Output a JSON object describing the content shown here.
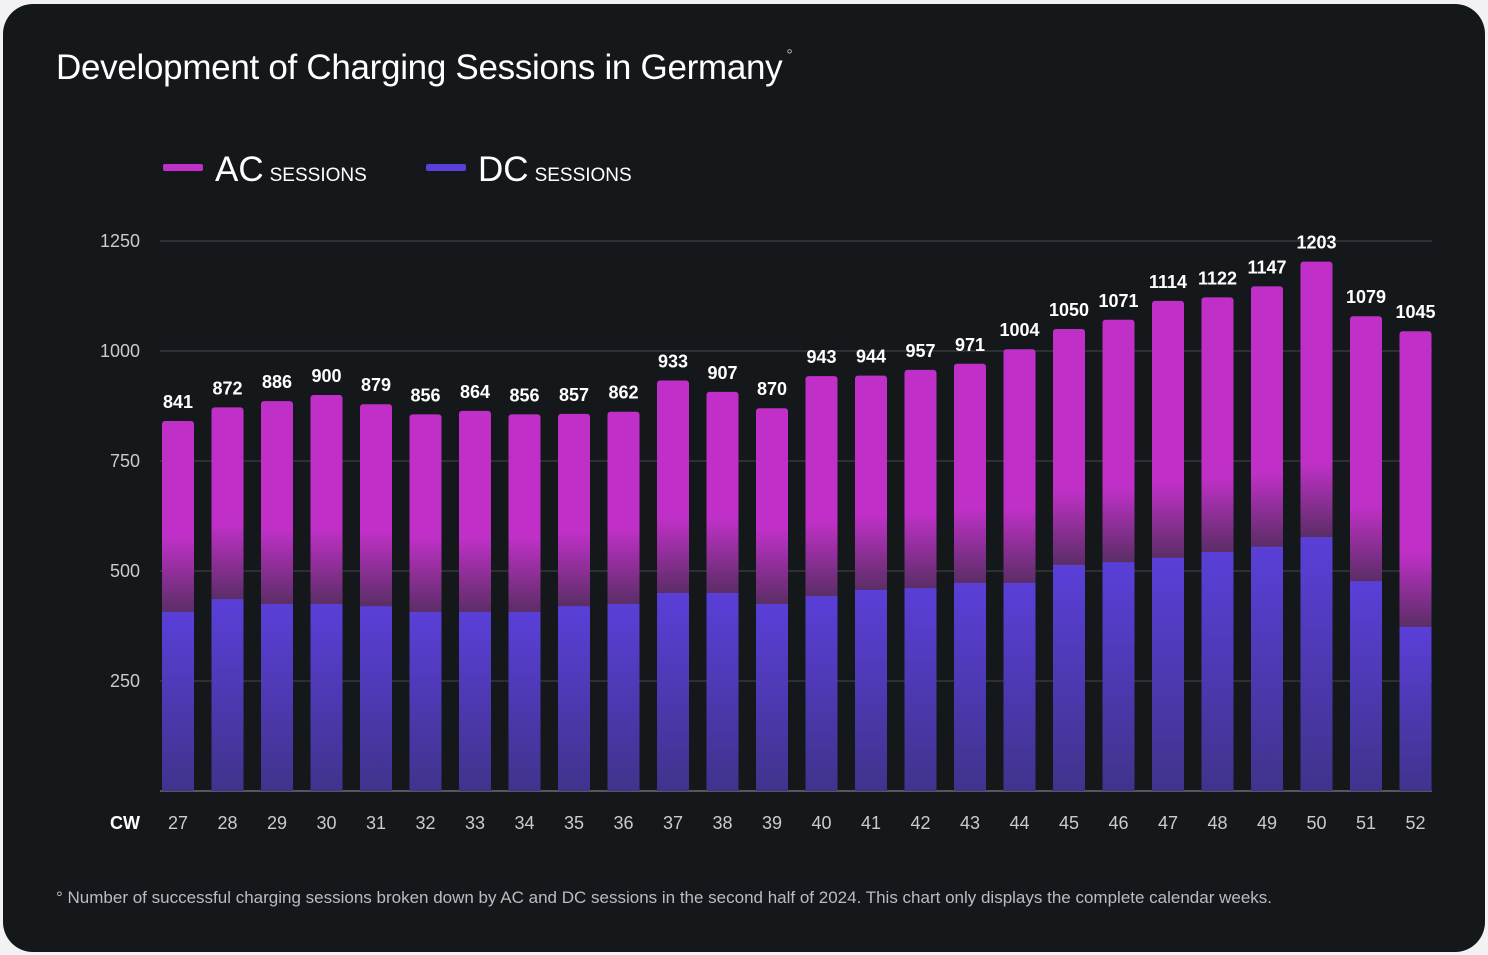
{
  "chart_data": {
    "type": "bar",
    "stacked": true,
    "title": "Development of Charging Sessions in Germany",
    "title_mark": "°",
    "xlabel": "CW",
    "ylabel": "",
    "ylim": [
      0,
      1250
    ],
    "yticks": [
      250,
      500,
      750,
      1000,
      1250
    ],
    "grid": true,
    "legend_position": "top-left",
    "categories": [
      "27",
      "28",
      "29",
      "30",
      "31",
      "32",
      "33",
      "34",
      "35",
      "36",
      "37",
      "38",
      "39",
      "40",
      "41",
      "42",
      "43",
      "44",
      "45",
      "46",
      "47",
      "48",
      "49",
      "50",
      "51",
      "52"
    ],
    "totals": [
      841,
      872,
      886,
      900,
      879,
      856,
      864,
      856,
      857,
      862,
      933,
      907,
      870,
      943,
      944,
      957,
      971,
      1004,
      1050,
      1071,
      1114,
      1122,
      1147,
      1203,
      1079,
      1045
    ],
    "series": [
      {
        "name": "DC",
        "suffix": "SESSIONS",
        "color": "#5a3fd8",
        "values": [
          407,
          436,
          425,
          425,
          420,
          407,
          407,
          407,
          420,
          425,
          450,
          450,
          425,
          443,
          457,
          461,
          473,
          473,
          514,
          520,
          530,
          543,
          555,
          577,
          477,
          373
        ]
      },
      {
        "name": "AC",
        "suffix": "SESSIONS",
        "color": "#c030c8",
        "values": [
          434,
          436,
          461,
          475,
          459,
          449,
          457,
          449,
          437,
          437,
          483,
          457,
          445,
          500,
          487,
          496,
          498,
          531,
          536,
          551,
          584,
          579,
          592,
          626,
          602,
          672
        ]
      }
    ],
    "footnote": "° Number of successful charging sessions broken down by AC and DC sessions in the second half of 2024. This chart only displays the complete calendar weeks."
  }
}
